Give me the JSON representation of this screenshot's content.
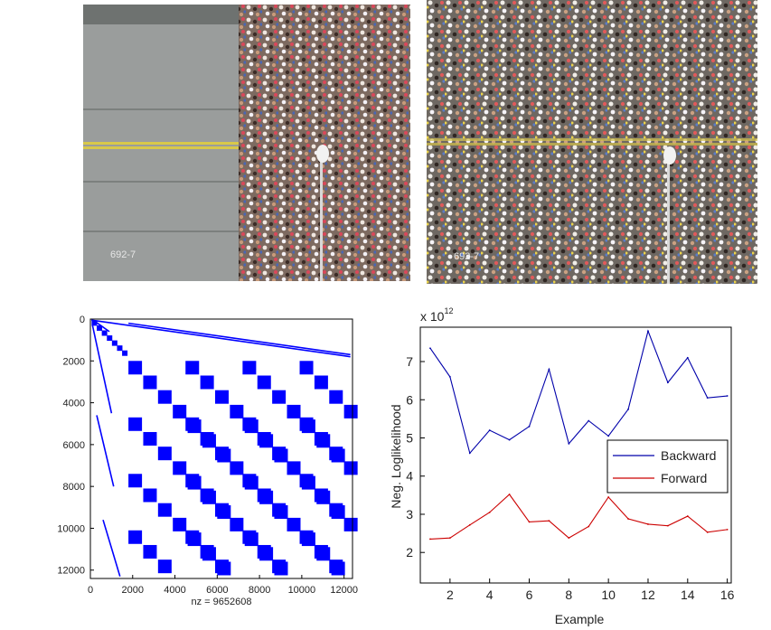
{
  "photos": [
    {
      "caption": "692-7"
    },
    {
      "caption": "692-7"
    }
  ],
  "sparsity": {
    "nz_label": "nz = 9652608",
    "color": "#0000ff",
    "x_ticks": [
      0,
      2000,
      4000,
      6000,
      8000,
      10000,
      12000
    ],
    "y_ticks": [
      0,
      2000,
      4000,
      6000,
      8000,
      10000,
      12000
    ],
    "range": [
      0,
      12400
    ]
  },
  "chart_data": {
    "type": "line",
    "title": "",
    "multiplier_label": "x 10",
    "multiplier_exponent": "12",
    "xlabel": "Example",
    "ylabel": "Neg. Loglikelihood",
    "xlim": [
      0.5,
      16.2
    ],
    "ylim": [
      1.2,
      7.9
    ],
    "x_ticks": [
      2,
      4,
      6,
      8,
      10,
      12,
      14,
      16
    ],
    "y_ticks": [
      2,
      3,
      4,
      5,
      6,
      7
    ],
    "x": [
      1,
      2,
      3,
      4,
      5,
      6,
      7,
      8,
      9,
      10,
      11,
      12,
      13,
      14,
      15,
      16
    ],
    "legend_position": "right",
    "series": [
      {
        "name": "Backward",
        "color": "#0000aa",
        "values": [
          7.35,
          6.6,
          4.6,
          5.2,
          4.95,
          5.3,
          6.8,
          4.85,
          5.45,
          5.05,
          5.75,
          7.8,
          6.45,
          7.1,
          6.05,
          6.1
        ]
      },
      {
        "name": "Forward",
        "color": "#cc0000",
        "values": [
          2.35,
          2.38,
          2.72,
          3.05,
          3.52,
          2.8,
          2.83,
          2.38,
          2.68,
          3.45,
          2.88,
          2.74,
          2.7,
          2.95,
          2.53,
          2.6
        ]
      }
    ]
  }
}
